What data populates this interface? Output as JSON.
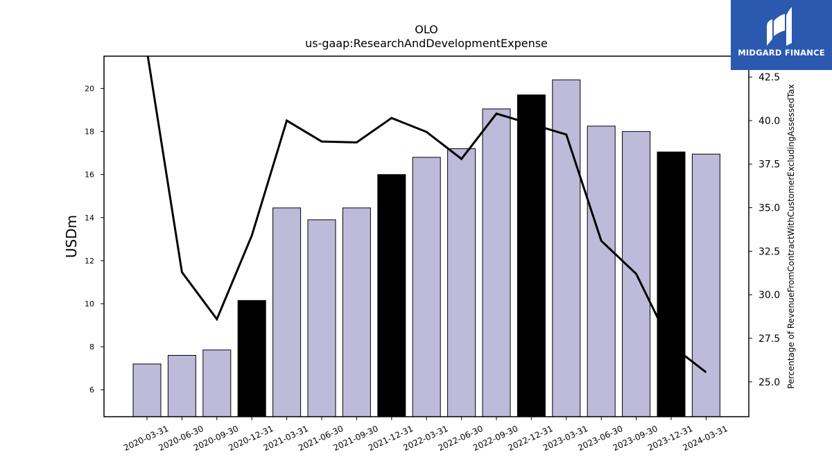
{
  "chart_data": {
    "type": "bar",
    "title": "OLO",
    "subtitle": "us-gaap:ResearchAndDevelopmentExpense",
    "ylabel": "USDm",
    "y2label": "Percentage of RevenueFromContractWithCustomerExcludingAssessedTax",
    "categories": [
      "2020-03-31",
      "2020-06-30",
      "2020-09-30",
      "2020-12-31",
      "2021-03-31",
      "2021-06-30",
      "2021-09-30",
      "2021-12-31",
      "2022-03-31",
      "2022-06-30",
      "2022-09-30",
      "2022-12-31",
      "2023-03-31",
      "2023-06-30",
      "2023-09-30",
      "2023-12-31",
      "2024-03-31"
    ],
    "series": [
      {
        "values": [
          7.2,
          7.6,
          7.85,
          10.15,
          14.45,
          13.9,
          14.45,
          16.0,
          16.8,
          17.2,
          19.05,
          19.7,
          20.4,
          18.25,
          18.0,
          17.05,
          16.95
        ],
        "highlight": [
          false,
          false,
          false,
          true,
          false,
          false,
          false,
          true,
          false,
          false,
          false,
          true,
          false,
          false,
          false,
          true,
          false
        ]
      },
      {
        "axis": "right",
        "type": "line",
        "values": [
          44.0,
          31.3,
          28.6,
          33.4,
          40.0,
          38.8,
          38.75,
          40.15,
          39.35,
          37.8,
          40.4,
          39.8,
          39.2,
          33.1,
          31.2,
          27.1,
          25.55
        ]
      }
    ],
    "yticks": [
      "6",
      "8",
      "10",
      "12",
      "14",
      "16",
      "18",
      "20"
    ],
    "y2ticks": [
      "25.0",
      "27.5",
      "30.0",
      "32.5",
      "35.0",
      "37.5",
      "40.0",
      "42.5"
    ],
    "ylim": [
      4.75,
      21.5
    ],
    "y2lim": [
      23.0,
      43.7
    ],
    "colors": {
      "bar": "#bebad9",
      "highlight": "#000000",
      "line": "#000000",
      "edge": "#000000"
    },
    "grid": false
  },
  "brand": {
    "name": "MIDGARD FINANCE",
    "color": "#2b59b0"
  }
}
